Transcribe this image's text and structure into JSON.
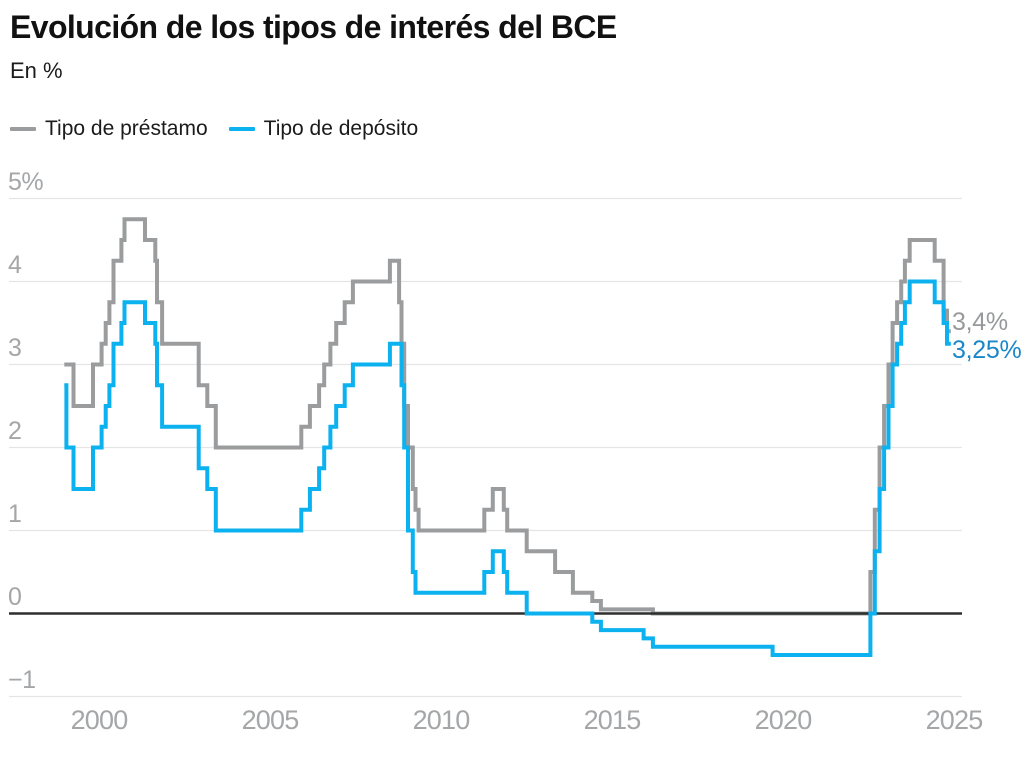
{
  "header": {
    "title": "Evolución de los tipos de interés del BCE",
    "subtitle": "En %"
  },
  "legend": {
    "items": [
      {
        "label": "Tipo de préstamo",
        "color": "#9a9c9e"
      },
      {
        "label": "Tipo de depósito",
        "color": "#0cb1ef"
      }
    ]
  },
  "annotations": {
    "lending_last": "3,4%",
    "deposit_last": "3,25%"
  },
  "colors": {
    "title": "#111111",
    "text": "#1b1b1b",
    "tick_label": "#a4a6a8",
    "grid": "#e5e5e5",
    "zero_axis": "#2e2e2e",
    "lending_line": "#9a9c9e",
    "deposit_line": "#0cb1ef",
    "lending_label": "#97999b",
    "deposit_label": "#1a87c9"
  },
  "chart_data": {
    "type": "line",
    "step": true,
    "title": "Evolución de los tipos de interés del BCE",
    "units": "En %",
    "grid": "horizontal",
    "legend_position": "top-left",
    "xlim": [
      1999.0,
      2025.3
    ],
    "ylim": [
      -1,
      5
    ],
    "x_ticks": [
      2000,
      2005,
      2010,
      2015,
      2020,
      2025
    ],
    "y_ticks": [
      {
        "value": 5,
        "label": "5%"
      },
      {
        "value": 4,
        "label": "4"
      },
      {
        "value": 3,
        "label": "3"
      },
      {
        "value": 2,
        "label": "2"
      },
      {
        "value": 1,
        "label": "1"
      },
      {
        "value": 0,
        "label": "0"
      },
      {
        "value": -1,
        "label": "−1"
      }
    ],
    "series": [
      {
        "name": "Tipo de préstamo",
        "color": "#9a9c9e",
        "x_end": 2024.92,
        "last_value_label": "3,4%",
        "points": [
          [
            1999.0,
            3.0
          ],
          [
            1999.27,
            2.5
          ],
          [
            1999.84,
            3.0
          ],
          [
            2000.09,
            3.25
          ],
          [
            2000.21,
            3.5
          ],
          [
            2000.32,
            3.75
          ],
          [
            2000.44,
            4.25
          ],
          [
            2000.67,
            4.5
          ],
          [
            2000.76,
            4.75
          ],
          [
            2001.36,
            4.5
          ],
          [
            2001.66,
            4.25
          ],
          [
            2001.71,
            3.75
          ],
          [
            2001.86,
            3.25
          ],
          [
            2002.93,
            2.75
          ],
          [
            2003.18,
            2.5
          ],
          [
            2003.43,
            2.0
          ],
          [
            2005.93,
            2.25
          ],
          [
            2006.18,
            2.5
          ],
          [
            2006.45,
            2.75
          ],
          [
            2006.6,
            3.0
          ],
          [
            2006.78,
            3.25
          ],
          [
            2006.95,
            3.5
          ],
          [
            2007.2,
            3.75
          ],
          [
            2007.44,
            4.0
          ],
          [
            2008.52,
            4.25
          ],
          [
            2008.79,
            3.75
          ],
          [
            2008.86,
            3.25
          ],
          [
            2008.94,
            2.5
          ],
          [
            2009.05,
            2.0
          ],
          [
            2009.19,
            1.5
          ],
          [
            2009.27,
            1.25
          ],
          [
            2009.36,
            1.0
          ],
          [
            2011.28,
            1.25
          ],
          [
            2011.53,
            1.5
          ],
          [
            2011.85,
            1.25
          ],
          [
            2011.95,
            1.0
          ],
          [
            2012.52,
            0.75
          ],
          [
            2013.35,
            0.5
          ],
          [
            2013.87,
            0.25
          ],
          [
            2014.44,
            0.15
          ],
          [
            2014.69,
            0.05
          ],
          [
            2016.21,
            0.0
          ],
          [
            2022.57,
            0.5
          ],
          [
            2022.7,
            1.25
          ],
          [
            2022.84,
            2.0
          ],
          [
            2022.97,
            2.5
          ],
          [
            2023.1,
            3.0
          ],
          [
            2023.22,
            3.5
          ],
          [
            2023.35,
            3.75
          ],
          [
            2023.47,
            4.0
          ],
          [
            2023.58,
            4.25
          ],
          [
            2023.72,
            4.5
          ],
          [
            2024.45,
            4.25
          ],
          [
            2024.71,
            3.65
          ],
          [
            2024.81,
            3.4
          ]
        ]
      },
      {
        "name": "Tipo de depósito",
        "color": "#0cb1ef",
        "x_end": 2024.92,
        "last_value_label": "3,25%",
        "points": [
          [
            1999.0,
            2.75
          ],
          [
            1999.06,
            2.0
          ],
          [
            1999.27,
            1.5
          ],
          [
            1999.84,
            2.0
          ],
          [
            2000.09,
            2.25
          ],
          [
            2000.21,
            2.5
          ],
          [
            2000.32,
            2.75
          ],
          [
            2000.44,
            3.25
          ],
          [
            2000.67,
            3.5
          ],
          [
            2000.76,
            3.75
          ],
          [
            2001.36,
            3.5
          ],
          [
            2001.66,
            3.25
          ],
          [
            2001.71,
            2.75
          ],
          [
            2001.86,
            2.25
          ],
          [
            2002.93,
            1.75
          ],
          [
            2003.18,
            1.5
          ],
          [
            2003.43,
            1.0
          ],
          [
            2005.93,
            1.25
          ],
          [
            2006.18,
            1.5
          ],
          [
            2006.45,
            1.75
          ],
          [
            2006.6,
            2.0
          ],
          [
            2006.78,
            2.25
          ],
          [
            2006.95,
            2.5
          ],
          [
            2007.2,
            2.75
          ],
          [
            2007.44,
            3.0
          ],
          [
            2008.52,
            3.25
          ],
          [
            2008.86,
            2.75
          ],
          [
            2008.94,
            2.0
          ],
          [
            2009.05,
            1.0
          ],
          [
            2009.19,
            0.5
          ],
          [
            2009.27,
            0.25
          ],
          [
            2011.28,
            0.5
          ],
          [
            2011.53,
            0.75
          ],
          [
            2011.85,
            0.5
          ],
          [
            2011.95,
            0.25
          ],
          [
            2012.52,
            0.0
          ],
          [
            2014.44,
            -0.1
          ],
          [
            2014.69,
            -0.2
          ],
          [
            2015.94,
            -0.3
          ],
          [
            2016.21,
            -0.4
          ],
          [
            2019.71,
            -0.5
          ],
          [
            2022.57,
            0.0
          ],
          [
            2022.7,
            0.75
          ],
          [
            2022.84,
            1.5
          ],
          [
            2022.97,
            2.0
          ],
          [
            2023.1,
            2.5
          ],
          [
            2023.22,
            3.0
          ],
          [
            2023.35,
            3.25
          ],
          [
            2023.47,
            3.5
          ],
          [
            2023.58,
            3.75
          ],
          [
            2023.72,
            4.0
          ],
          [
            2024.45,
            3.75
          ],
          [
            2024.71,
            3.5
          ],
          [
            2024.81,
            3.25
          ]
        ]
      }
    ]
  }
}
